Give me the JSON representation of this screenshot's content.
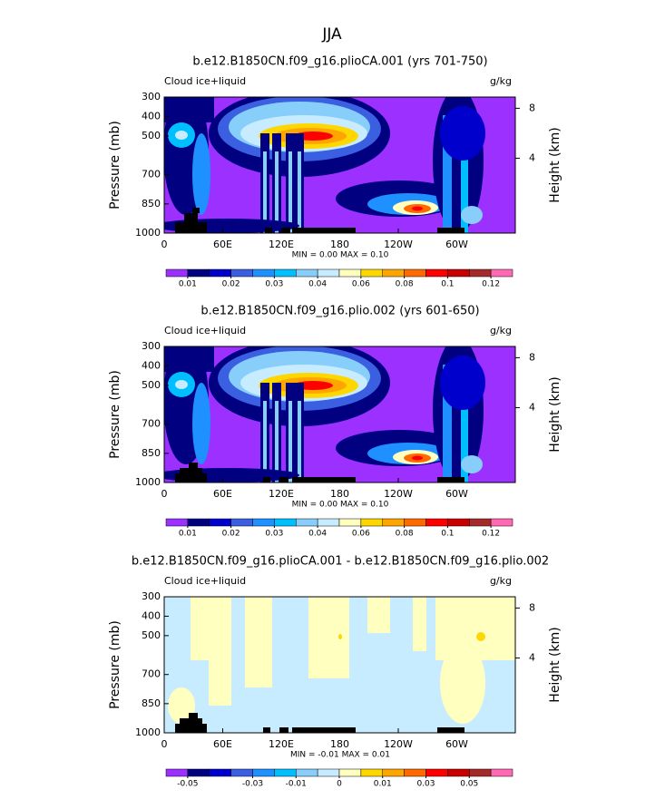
{
  "suptitle": "JJA",
  "chart_data": [
    {
      "type": "contour",
      "title": "b.e12.B1850CN.f09_g16.plioCA.001 (yrs 701-750)",
      "left_label": "Cloud ice+liquid",
      "units": "g/kg",
      "ylabel": "Pressure (mb)",
      "y2label": "Height (km)",
      "stats": "MIN =   0.00   MAX =   0.10",
      "ylim": [
        1000,
        300
      ],
      "yticks": [
        300,
        400,
        500,
        700,
        850,
        1000
      ],
      "y2lim": [
        -2,
        8.9
      ],
      "y2ticks": [
        4,
        8
      ],
      "xlim": [
        0,
        360
      ],
      "xticks": [
        0,
        {
          "value": 60,
          "label": "60E"
        },
        {
          "value": 120,
          "label": "120E"
        },
        180,
        {
          "value": 240,
          "label": "120W"
        },
        {
          "value": 300,
          "label": "60W"
        }
      ],
      "colorbar": {
        "colors": [
          "#9b30ff",
          "#000080",
          "#0000cd",
          "#3a5fe0",
          "#1e90ff",
          "#00bfff",
          "#87cefa",
          "#c8ecff",
          "#ffffc0",
          "#ffd700",
          "#ffa500",
          "#ff6a00",
          "#ff0000",
          "#c80000",
          "#a52a2a",
          "#ff69b4"
        ],
        "levels": [
          0.01,
          0.02,
          0.03,
          0.04,
          0.06,
          0.08,
          0.1,
          0.12
        ]
      }
    },
    {
      "type": "contour",
      "title": "b.e12.B1850CN.f09_g16.plio.002 (yrs 601-650)",
      "left_label": "Cloud ice+liquid",
      "units": "g/kg",
      "ylabel": "Pressure (mb)",
      "y2label": "Height (km)",
      "stats": "MIN =   0.00   MAX =   0.10",
      "ylim": [
        1000,
        300
      ],
      "yticks": [
        300,
        400,
        500,
        700,
        850,
        1000
      ],
      "y2lim": [
        -2,
        8.9
      ],
      "y2ticks": [
        4,
        8
      ],
      "xlim": [
        0,
        360
      ],
      "xticks": [
        0,
        {
          "value": 60,
          "label": "60E"
        },
        {
          "value": 120,
          "label": "120E"
        },
        180,
        {
          "value": 240,
          "label": "120W"
        },
        {
          "value": 300,
          "label": "60W"
        }
      ],
      "colorbar": {
        "colors": [
          "#9b30ff",
          "#000080",
          "#0000cd",
          "#3a5fe0",
          "#1e90ff",
          "#00bfff",
          "#87cefa",
          "#c8ecff",
          "#ffffc0",
          "#ffd700",
          "#ffa500",
          "#ff6a00",
          "#ff0000",
          "#c80000",
          "#a52a2a",
          "#ff69b4"
        ],
        "levels": [
          0.01,
          0.02,
          0.03,
          0.04,
          0.06,
          0.08,
          0.1,
          0.12
        ]
      }
    },
    {
      "type": "contour",
      "title": "b.e12.B1850CN.f09_g16.plioCA.001 - b.e12.B1850CN.f09_g16.plio.002",
      "left_label": "Cloud ice+liquid",
      "units": "g/kg",
      "ylabel": "Pressure (mb)",
      "y2label": "Height (km)",
      "stats": "MIN =  -0.01   MAX =   0.01",
      "ylim": [
        1000,
        300
      ],
      "yticks": [
        300,
        400,
        500,
        700,
        850,
        1000
      ],
      "y2lim": [
        -2,
        8.9
      ],
      "y2ticks": [
        4,
        8
      ],
      "xlim": [
        0,
        360
      ],
      "xticks": [
        0,
        {
          "value": 60,
          "label": "60E"
        },
        {
          "value": 120,
          "label": "120E"
        },
        180,
        {
          "value": 240,
          "label": "120W"
        },
        {
          "value": 300,
          "label": "60W"
        }
      ],
      "colorbar": {
        "colors": [
          "#9b30ff",
          "#000080",
          "#0000cd",
          "#3a5fe0",
          "#1e90ff",
          "#00bfff",
          "#87cefa",
          "#c8ecff",
          "#ffffc0",
          "#ffd700",
          "#ffa500",
          "#ff6a00",
          "#ff0000",
          "#c80000",
          "#a52a2a",
          "#ff69b4"
        ],
        "levels": [
          -0.05,
          -0.03,
          -0.01,
          0,
          0.01,
          0.03,
          0.05
        ]
      }
    }
  ]
}
